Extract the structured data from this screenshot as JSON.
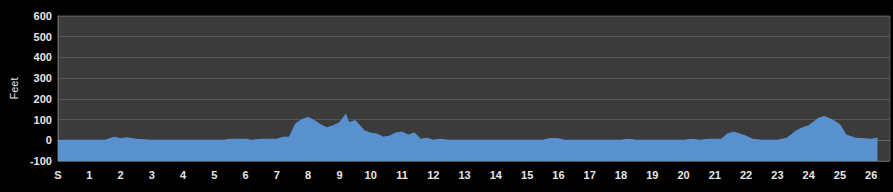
{
  "chart_data": {
    "type": "area",
    "y_label": "Feet",
    "color": "#5b95d6",
    "grid": true,
    "xlim": [
      0,
      26.6
    ],
    "xticks": [
      {
        "value": 0,
        "label": "S"
      },
      1,
      2,
      3,
      4,
      5,
      6,
      7,
      8,
      9,
      10,
      11,
      12,
      13,
      14,
      15,
      16,
      17,
      18,
      19,
      20,
      21,
      22,
      23,
      24,
      25,
      26
    ],
    "ylim": [
      -100,
      600
    ],
    "yticks": [
      -100,
      0,
      100,
      200,
      300,
      400,
      500,
      600
    ],
    "x": [
      0,
      1.5,
      1.8,
      2,
      2.2,
      2.5,
      3,
      5.3,
      5.5,
      6,
      6.2,
      6.5,
      7,
      7.2,
      7.4,
      7.6,
      7.8,
      8,
      8.2,
      8.4,
      8.6,
      8.8,
      9,
      9.2,
      9.3,
      9.5,
      9.6,
      9.8,
      10,
      10.2,
      10.4,
      10.6,
      10.8,
      11,
      11.2,
      11.4,
      11.6,
      11.8,
      12,
      12.2,
      12.5,
      15.5,
      15.7,
      16,
      16.2,
      18,
      18.2,
      18.5,
      20,
      20.3,
      20.5,
      20.8,
      21.2,
      21.4,
      21.6,
      21.8,
      22,
      22.2,
      22.5,
      23,
      23.3,
      23.6,
      23.8,
      24,
      24.3,
      24.5,
      24.8,
      25,
      25.2,
      25.5,
      26,
      26.2
    ],
    "values": [
      0,
      0,
      15,
      8,
      12,
      5,
      0,
      0,
      5,
      5,
      0,
      5,
      5,
      15,
      15,
      80,
      100,
      110,
      95,
      75,
      60,
      70,
      85,
      125,
      85,
      95,
      80,
      45,
      35,
      30,
      15,
      20,
      35,
      40,
      25,
      35,
      5,
      10,
      0,
      5,
      0,
      0,
      8,
      8,
      0,
      0,
      5,
      0,
      0,
      5,
      0,
      5,
      5,
      30,
      40,
      30,
      20,
      5,
      0,
      0,
      10,
      45,
      60,
      70,
      105,
      115,
      95,
      75,
      25,
      10,
      5,
      10
    ]
  }
}
